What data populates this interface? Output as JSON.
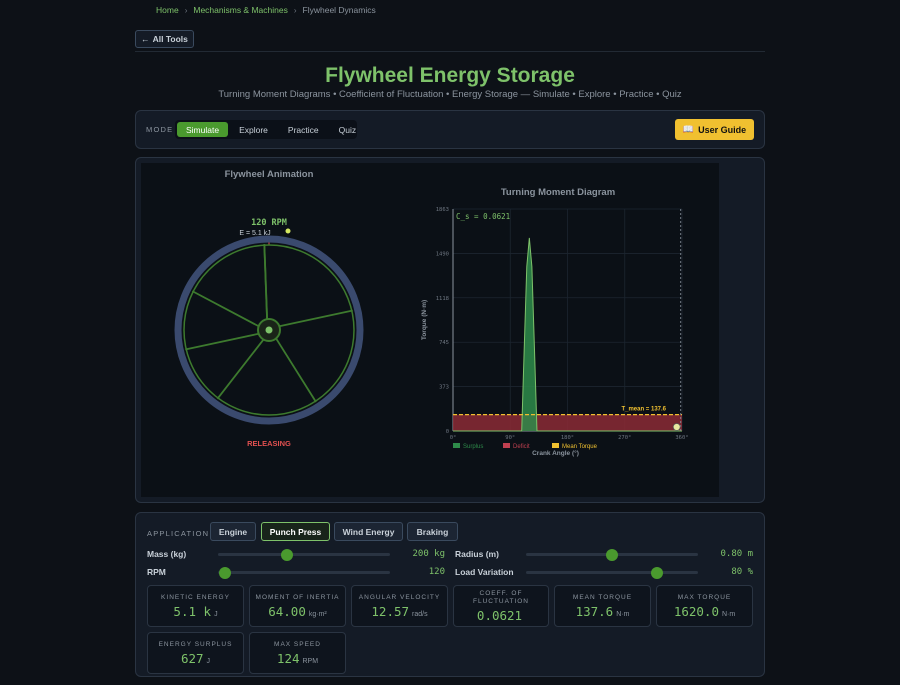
{
  "breadcrumb": {
    "home": "Home",
    "category": "Mechanisms & Machines",
    "current": "Flywheel Dynamics",
    "sep": "›"
  },
  "back_button": "All Tools",
  "page": {
    "title": "Flywheel Energy Storage",
    "subtitle": "Turning Moment Diagrams • Coefficient of Fluctuation • Energy Storage — Simulate • Explore • Practice • Quiz"
  },
  "mode": {
    "label": "MODE",
    "tabs": [
      "Simulate",
      "Explore",
      "Practice",
      "Quiz"
    ],
    "active": "Simulate"
  },
  "guide_button": "User Guide",
  "animation": {
    "title": "Flywheel Animation",
    "rpm_text": "120 RPM",
    "energy_text": "E = 5.1 kJ",
    "state_text": "RELEASING",
    "colors": {
      "rim": "#3a4a6e",
      "spoke": "#3d7a2e",
      "state": "#e05050"
    }
  },
  "chart_data": {
    "type": "area",
    "title": "Turning Moment Diagram",
    "xlabel": "Crank Angle (°)",
    "ylabel": "Torque (N·m)",
    "xlim": [
      0,
      360
    ],
    "ylim": [
      0,
      1863
    ],
    "x_ticks": [
      "0°",
      "90°",
      "180°",
      "270°",
      "360°"
    ],
    "y_ticks": [
      "0",
      "373",
      "745",
      "1118",
      "1490",
      "1863"
    ],
    "mean_torque": 137.6,
    "mean_label": "T_mean = 137.6",
    "cs_label": "C_s = 0.0621",
    "series": [
      {
        "name": "Surplus",
        "color": "#2e8b4a"
      },
      {
        "name": "Deficit",
        "color": "#c04050"
      },
      {
        "name": "Mean Torque",
        "color": "#f0c030"
      }
    ],
    "x": [
      0,
      90,
      108,
      112,
      116,
      120,
      124,
      128,
      132,
      144,
      150,
      360
    ],
    "y": [
      0,
      0,
      0,
      700,
      1380,
      1620,
      1380,
      700,
      0,
      0,
      0,
      0
    ],
    "current_angle": 358,
    "grid": true,
    "legend_position": "bottom"
  },
  "application": {
    "label": "APPLICATION",
    "options": [
      "Engine",
      "Punch Press",
      "Wind Energy",
      "Braking"
    ],
    "active": "Punch Press"
  },
  "params": {
    "mass": {
      "label": "Mass (kg)",
      "value": "200 kg",
      "fraction": 0.4
    },
    "rpm": {
      "label": "RPM",
      "value": "120",
      "fraction": 0.04
    },
    "radius": {
      "label": "Radius (m)",
      "value": "0.80 m",
      "fraction": 0.5
    },
    "load": {
      "label": "Load Variation",
      "value": "80 %",
      "fraction": 0.76
    }
  },
  "stats": [
    {
      "label": "Kinetic Energy",
      "value": "5.1 k",
      "unit": "J"
    },
    {
      "label": "Moment of Inertia",
      "value": "64.00",
      "unit": "kg·m²"
    },
    {
      "label": "Angular Velocity",
      "value": "12.57",
      "unit": "rad/s"
    },
    {
      "label": "Coeff. of Fluctuation",
      "value": "0.0621",
      "unit": ""
    },
    {
      "label": "Mean Torque",
      "value": "137.6",
      "unit": "N·m"
    },
    {
      "label": "Max Torque",
      "value": "1620.0",
      "unit": "N·m"
    },
    {
      "label": "Energy Surplus",
      "value": "627",
      "unit": "J"
    },
    {
      "label": "Max Speed",
      "value": "124",
      "unit": "RPM"
    }
  ]
}
